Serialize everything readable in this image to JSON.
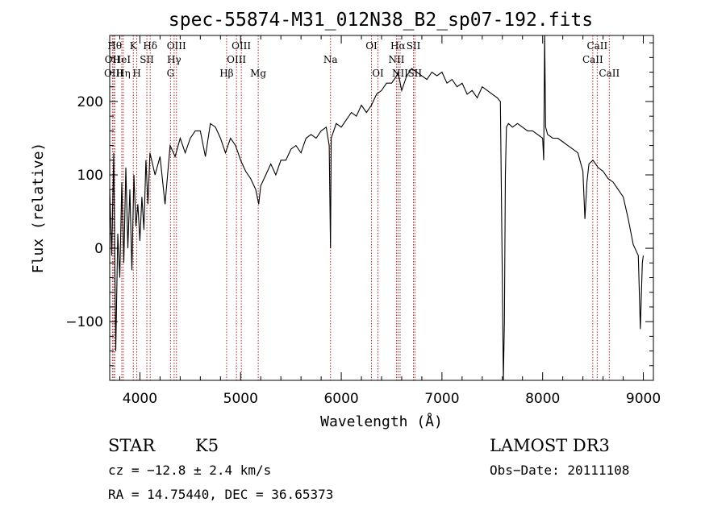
{
  "chart_data": {
    "type": "line",
    "title": "spec-55874-M31_012N38_B2_sp07-192.fits",
    "xlabel": "Wavelength (Å)",
    "ylabel": "Flux (relative)",
    "xlim": [
      3700,
      9100
    ],
    "ylim": [
      -180,
      290
    ],
    "xticks": [
      4000,
      5000,
      6000,
      7000,
      8000,
      9000
    ],
    "yticks": [
      -100,
      0,
      100,
      200
    ],
    "ytick_labels": [
      "−100",
      "0",
      "100",
      "200"
    ],
    "series": [
      {
        "name": "flux",
        "x": [
          3700,
          3720,
          3740,
          3760,
          3780,
          3800,
          3820,
          3840,
          3860,
          3880,
          3900,
          3920,
          3940,
          3960,
          3980,
          4000,
          4020,
          4040,
          4060,
          4080,
          4100,
          4150,
          4200,
          4250,
          4300,
          4350,
          4400,
          4450,
          4500,
          4550,
          4600,
          4650,
          4700,
          4750,
          4800,
          4850,
          4900,
          4950,
          5000,
          5050,
          5100,
          5150,
          5180,
          5200,
          5250,
          5300,
          5350,
          5400,
          5450,
          5500,
          5550,
          5600,
          5650,
          5700,
          5750,
          5800,
          5850,
          5880,
          5893,
          5900,
          5950,
          6000,
          6050,
          6100,
          6150,
          6200,
          6250,
          6300,
          6350,
          6400,
          6450,
          6500,
          6550,
          6563,
          6600,
          6650,
          6700,
          6750,
          6800,
          6850,
          6900,
          6950,
          7000,
          7050,
          7100,
          7150,
          7200,
          7250,
          7300,
          7350,
          7400,
          7450,
          7500,
          7550,
          7580,
          7600,
          7610,
          7620,
          7630,
          7640,
          7660,
          7700,
          7750,
          7800,
          7850,
          7900,
          7950,
          8000,
          8010,
          8020,
          8030,
          8050,
          8100,
          8150,
          8200,
          8250,
          8300,
          8350,
          8400,
          8420,
          8440,
          8460,
          8500,
          8550,
          8600,
          8650,
          8700,
          8750,
          8800,
          8850,
          8900,
          8950,
          8970,
          8990,
          9000
        ],
        "y": [
          80,
          -10,
          130,
          -140,
          20,
          -40,
          90,
          -20,
          110,
          0,
          80,
          -30,
          100,
          30,
          60,
          10,
          70,
          25,
          120,
          60,
          130,
          100,
          125,
          60,
          140,
          125,
          150,
          130,
          150,
          160,
          160,
          125,
          170,
          165,
          150,
          130,
          150,
          140,
          120,
          105,
          95,
          80,
          60,
          85,
          100,
          115,
          100,
          120,
          120,
          135,
          140,
          130,
          150,
          155,
          150,
          160,
          165,
          140,
          0,
          150,
          170,
          165,
          175,
          185,
          180,
          195,
          185,
          195,
          210,
          215,
          225,
          225,
          235,
          240,
          215,
          235,
          245,
          240,
          235,
          230,
          240,
          235,
          240,
          225,
          230,
          220,
          225,
          210,
          215,
          205,
          220,
          215,
          210,
          205,
          200,
          -50,
          -180,
          -100,
          100,
          165,
          170,
          165,
          170,
          165,
          160,
          160,
          155,
          150,
          120,
          290,
          165,
          155,
          150,
          150,
          145,
          140,
          135,
          130,
          105,
          40,
          90,
          115,
          120,
          110,
          105,
          95,
          90,
          80,
          70,
          40,
          5,
          -10,
          -110,
          -20,
          -10
        ]
      }
    ],
    "line_markers": [
      {
        "name": "OII",
        "x": 3727,
        "row": 2
      },
      {
        "name": "Hθ",
        "x": 3750,
        "row": 1
      },
      {
        "name": "OIII",
        "x": 3740,
        "row": 3
      },
      {
        "name": "Hη",
        "x": 3835,
        "row": 3
      },
      {
        "name": "HeI",
        "x": 3820,
        "row": 2
      },
      {
        "name": "K",
        "x": 3934,
        "row": 1
      },
      {
        "name": "H",
        "x": 3969,
        "row": 3
      },
      {
        "name": "SII",
        "x": 4069,
        "row": 2
      },
      {
        "name": "Hδ",
        "x": 4102,
        "row": 1
      },
      {
        "name": "G",
        "x": 4304,
        "row": 3
      },
      {
        "name": "Hγ",
        "x": 4340,
        "row": 2
      },
      {
        "name": "OIII",
        "x": 4363,
        "row": 1
      },
      {
        "name": "Hβ",
        "x": 4861,
        "row": 3
      },
      {
        "name": "OIII",
        "x": 4959,
        "row": 2
      },
      {
        "name": "OIII",
        "x": 5007,
        "row": 1
      },
      {
        "name": "Mg",
        "x": 5175,
        "row": 3
      },
      {
        "name": "Na",
        "x": 5893,
        "row": 2
      },
      {
        "name": "OI",
        "x": 6300,
        "row": 1
      },
      {
        "name": "OI",
        "x": 6364,
        "row": 3
      },
      {
        "name": "NII",
        "x": 6548,
        "row": 2
      },
      {
        "name": "Hα",
        "x": 6563,
        "row": 1
      },
      {
        "name": "NII",
        "x": 6584,
        "row": 3
      },
      {
        "name": "SII",
        "x": 6717,
        "row": 1
      },
      {
        "name": "SII",
        "x": 6731,
        "row": 3
      },
      {
        "name": "CaII",
        "x": 8498,
        "row": 2
      },
      {
        "name": "CaII",
        "x": 8542,
        "row": 1
      },
      {
        "name": "CaII",
        "x": 8662,
        "row": 3
      }
    ]
  },
  "info": {
    "class": "STAR",
    "subclass": "K5",
    "survey": "LAMOST DR3",
    "cz": "cz = −12.8 ± 2.4 km/s",
    "obs_date": "Obs−Date: 20111108",
    "coords": "RA =  14.75440, DEC =  36.65373"
  },
  "colors": {
    "marker": "#b22222",
    "line": "#000000"
  }
}
